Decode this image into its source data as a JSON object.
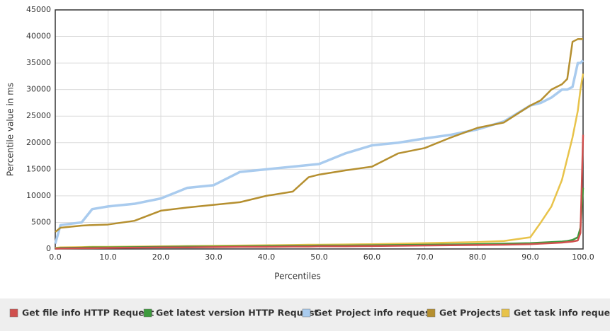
{
  "chart_data": {
    "type": "line",
    "x_label": "Percentiles",
    "y_label": "Percentile value in ms",
    "x": [
      0,
      1,
      5,
      7,
      10,
      15,
      20,
      25,
      30,
      35,
      40,
      45,
      48,
      50,
      55,
      60,
      65,
      70,
      75,
      80,
      85,
      90,
      92,
      94,
      96,
      97,
      98,
      99,
      99.5,
      100
    ],
    "series": [
      {
        "name": "Get file info HTTP Request",
        "color": "#d0504e",
        "values": [
          50,
          100,
          150,
          150,
          200,
          250,
          300,
          300,
          350,
          400,
          400,
          450,
          450,
          500,
          500,
          550,
          600,
          650,
          700,
          750,
          800,
          900,
          1000,
          1100,
          1200,
          1300,
          1400,
          1600,
          3000,
          21500
        ]
      },
      {
        "name": "Get latest version HTTP Request",
        "color": "#3c9a3c",
        "values": [
          100,
          200,
          250,
          300,
          300,
          350,
          400,
          450,
          450,
          500,
          550,
          600,
          600,
          650,
          650,
          700,
          750,
          800,
          850,
          900,
          1000,
          1100,
          1200,
          1300,
          1400,
          1500,
          1700,
          2200,
          4000,
          11500
        ]
      },
      {
        "name": "Get Project info request",
        "color": "#a9cbee",
        "values": [
          1000,
          4500,
          5000,
          7500,
          8000,
          8500,
          9500,
          11500,
          12000,
          14500,
          15000,
          15500,
          15800,
          16000,
          18000,
          19500,
          20000,
          20800,
          21500,
          22500,
          24000,
          27000,
          27500,
          28500,
          30000,
          30000,
          30500,
          35000,
          35000,
          35500
        ]
      },
      {
        "name": "Get Projects",
        "color": "#b58f2f",
        "values": [
          3200,
          4000,
          4400,
          4500,
          4600,
          5300,
          7200,
          7800,
          8300,
          8800,
          10000,
          10800,
          13500,
          14000,
          14800,
          15500,
          18000,
          19000,
          21000,
          22800,
          23800,
          27000,
          28000,
          30000,
          31000,
          32000,
          39000,
          39500,
          39500,
          39500
        ]
      },
      {
        "name": "Get task info request",
        "color": "#e8c34a",
        "values": [
          200,
          300,
          350,
          400,
          400,
          450,
          500,
          550,
          600,
          650,
          700,
          750,
          800,
          800,
          850,
          900,
          1000,
          1100,
          1200,
          1300,
          1500,
          2200,
          5000,
          8000,
          13000,
          17000,
          21000,
          26000,
          30000,
          33000
        ]
      }
    ],
    "xlim": [
      0,
      100
    ],
    "xticks": [
      {
        "value": 0,
        "label": "0.0"
      },
      {
        "value": 10,
        "label": "10.0"
      },
      {
        "value": 20,
        "label": "20.0"
      },
      {
        "value": 30,
        "label": "30.0"
      },
      {
        "value": 40,
        "label": "40.0"
      },
      {
        "value": 50,
        "label": "50.0"
      },
      {
        "value": 60,
        "label": "60.0"
      },
      {
        "value": 70,
        "label": "70.0"
      },
      {
        "value": 80,
        "label": "80.0"
      },
      {
        "value": 90,
        "label": "90.0"
      },
      {
        "value": 100,
        "label": "100.0"
      }
    ],
    "ylim": [
      0,
      45000
    ],
    "yticks": [
      0,
      5000,
      10000,
      15000,
      20000,
      25000,
      30000,
      35000,
      40000,
      45000
    ],
    "grid": true,
    "legend": "bottom"
  }
}
